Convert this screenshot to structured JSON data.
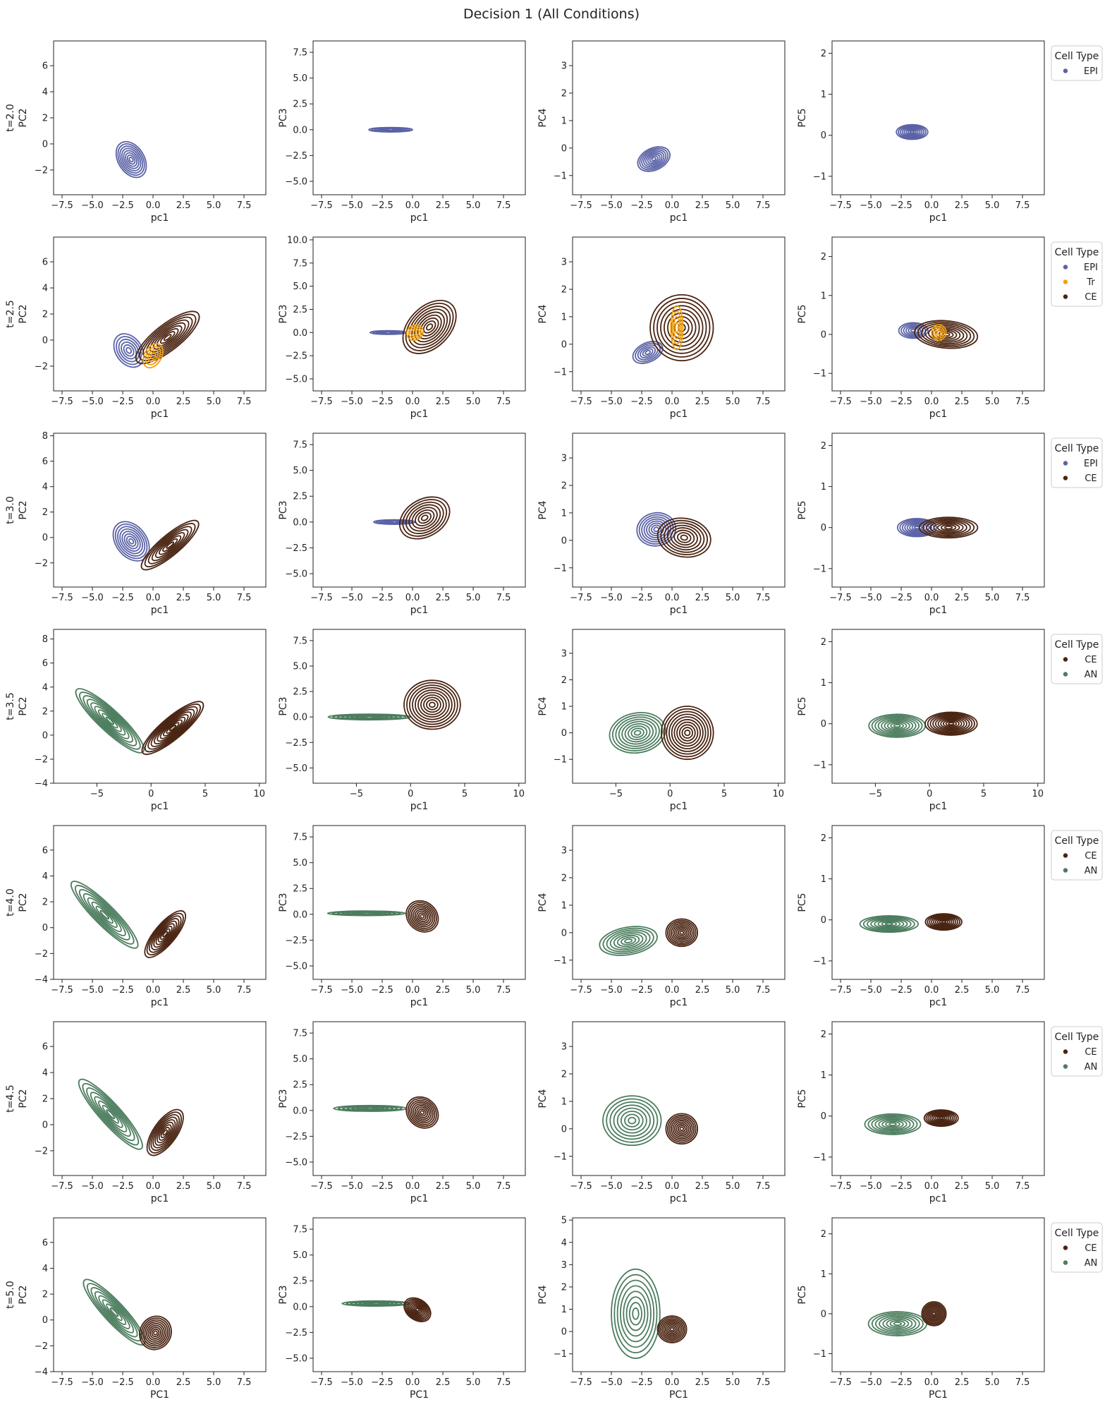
{
  "figure": {
    "title": "Decision 1 (All Conditions)"
  },
  "legend": {
    "title": "Cell Type"
  },
  "colors": {
    "EPI": "#5b63a6",
    "Tr": "#f2a10e",
    "CE": "#4a2412",
    "AN": "#4c7d5e"
  },
  "chart_data": [
    {
      "type": "contour",
      "row_label": "t=2.0",
      "ylabels": [
        "PC2",
        "PC3",
        "PC4",
        "PC5"
      ],
      "xlabel": "pc1",
      "legend": [
        "EPI"
      ],
      "xlim": [
        -8.2,
        9.3
      ],
      "xticks": [
        -7.5,
        -5.0,
        -2.5,
        0.0,
        2.5,
        5.0,
        7.5
      ],
      "ylims": [
        [
          -3.9,
          7.9
        ],
        [
          -6.3,
          8.6
        ],
        [
          -1.7,
          3.9
        ],
        [
          -1.45,
          2.3
        ]
      ],
      "yticks": [
        [
          -2,
          0,
          2,
          4,
          6
        ],
        [
          -5.0,
          -2.5,
          0.0,
          2.5,
          5.0,
          7.5
        ],
        [
          -1,
          0,
          1,
          2,
          3
        ],
        [
          -1,
          0,
          1,
          2
        ]
      ],
      "clusters": [
        {
          "type": "EPI",
          "center": [
            [
              -1.8,
              -1.2
            ],
            [
              -1.8,
              0.0
            ],
            [
              -1.5,
              -0.4
            ],
            [
              -1.6,
              0.08
            ]
          ],
          "spread": [
            [
              1.6,
              1.0
            ],
            [
              1.8,
              0.22
            ],
            [
              1.4,
              0.4
            ],
            [
              1.3,
              0.18
            ]
          ],
          "angle": [
            -58,
            0,
            25,
            0
          ],
          "levels": 8
        }
      ]
    },
    {
      "type": "contour",
      "row_label": "t=2.5",
      "ylabels": [
        "PC2",
        "PC3",
        "PC4",
        "PC5"
      ],
      "xlabel": "pc1",
      "legend": [
        "EPI",
        "Tr",
        "CE"
      ],
      "xlim": [
        -8.2,
        9.3
      ],
      "xticks": [
        -7.5,
        -5.0,
        -2.5,
        0.0,
        2.5,
        5.0,
        7.5
      ],
      "ylims": [
        [
          -3.9,
          7.9
        ],
        [
          -6.3,
          10.3
        ],
        [
          -1.7,
          3.9
        ],
        [
          -1.45,
          2.5
        ]
      ],
      "yticks": [
        [
          -2,
          0,
          2,
          4,
          6
        ],
        [
          -5.0,
          -2.5,
          0.0,
          2.5,
          5.0,
          7.5,
          10.0
        ],
        [
          -1,
          0,
          1,
          2,
          3
        ],
        [
          -1,
          0,
          1,
          2
        ]
      ],
      "clusters": [
        {
          "type": "EPI",
          "center": [
            [
              -2.0,
              -0.8
            ],
            [
              -2.0,
              0.0
            ],
            [
              -2.0,
              -0.3
            ],
            [
              -1.5,
              0.1
            ]
          ],
          "spread": [
            [
              1.5,
              1.0
            ],
            [
              1.5,
              0.2
            ],
            [
              1.3,
              0.35
            ],
            [
              1.2,
              0.2
            ]
          ],
          "angle": [
            -55,
            0,
            25,
            0
          ],
          "levels": 6
        },
        {
          "type": "CE",
          "center": [
            [
              1.2,
              0.2
            ],
            [
              1.4,
              0.6
            ],
            [
              0.8,
              0.6
            ],
            [
              1.2,
              0.0
            ]
          ],
          "spread": [
            [
              3.2,
              1.0
            ],
            [
              2.6,
              2.2
            ],
            [
              2.6,
              1.2
            ],
            [
              2.6,
              0.35
            ]
          ],
          "angle": [
            38,
            45,
            0,
            -5
          ],
          "levels": 9
        },
        {
          "type": "Tr",
          "center": [
            [
              0.0,
              -1.2
            ],
            [
              0.2,
              0.0
            ],
            [
              0.4,
              0.6
            ],
            [
              0.6,
              0.05
            ]
          ],
          "spread": [
            [
              0.7,
              1.0
            ],
            [
              0.7,
              0.8
            ],
            [
              0.5,
              0.8
            ],
            [
              0.6,
              0.2
            ]
          ],
          "angle": [
            -30,
            30,
            0,
            0
          ],
          "levels": 4
        }
      ]
    },
    {
      "type": "contour",
      "row_label": "t=3.0",
      "ylabels": [
        "PC2",
        "PC3",
        "PC4",
        "PC5"
      ],
      "xlabel": "pc1",
      "legend": [
        "EPI",
        "CE"
      ],
      "xlim": [
        -8.2,
        9.3
      ],
      "xticks": [
        -7.5,
        -5.0,
        -2.5,
        0.0,
        2.5,
        5.0,
        7.5
      ],
      "ylims": [
        [
          -3.9,
          8.2
        ],
        [
          -6.3,
          8.6
        ],
        [
          -1.7,
          3.9
        ],
        [
          -1.45,
          2.3
        ]
      ],
      "yticks": [
        [
          -2,
          0,
          2,
          4,
          6,
          8
        ],
        [
          -5.0,
          -2.5,
          0.0,
          2.5,
          5.0,
          7.5
        ],
        [
          -1,
          0,
          1,
          2,
          3
        ],
        [
          -1,
          0,
          1,
          2
        ]
      ],
      "clusters": [
        {
          "type": "EPI",
          "center": [
            [
              -1.8,
              -0.3
            ],
            [
              -1.5,
              0.0
            ],
            [
              -1.3,
              0.4
            ],
            [
              -1.2,
              0.0
            ]
          ],
          "spread": [
            [
              1.8,
              1.2
            ],
            [
              1.7,
              0.22
            ],
            [
              1.6,
              0.6
            ],
            [
              1.6,
              0.22
            ]
          ],
          "angle": [
            -52,
            0,
            10,
            0
          ],
          "levels": 8
        },
        {
          "type": "CE",
          "center": [
            [
              1.4,
              -0.6
            ],
            [
              1.0,
              0.4
            ],
            [
              1.0,
              0.1
            ],
            [
              1.4,
              0.0
            ]
          ],
          "spread": [
            [
              3.0,
              0.8
            ],
            [
              2.2,
              1.8
            ],
            [
              2.2,
              0.7
            ],
            [
              2.4,
              0.25
            ]
          ],
          "angle": [
            40,
            30,
            -10,
            0
          ],
          "levels": 8
        }
      ]
    },
    {
      "type": "contour",
      "row_label": "t=3.5",
      "ylabels": [
        "PC2",
        "PC3",
        "PC4",
        "PC5"
      ],
      "xlabel": "pc1",
      "legend": [
        "CE",
        "AN"
      ],
      "xlim": [
        -9.0,
        10.6
      ],
      "xticks": [
        -5,
        0,
        5,
        10
      ],
      "ylims": [
        [
          -4.0,
          8.8
        ],
        [
          -6.5,
          8.6
        ],
        [
          -1.9,
          3.9
        ],
        [
          -1.45,
          2.3
        ]
      ],
      "yticks": [
        [
          -4,
          -2,
          0,
          2,
          4,
          6,
          8
        ],
        [
          -5.0,
          -2.5,
          0.0,
          2.5,
          5.0,
          7.5
        ],
        [
          -1,
          0,
          1,
          2,
          3
        ],
        [
          -1,
          0,
          1,
          2
        ]
      ],
      "clusters": [
        {
          "type": "AN",
          "center": [
            [
              -3.8,
              1.2
            ],
            [
              -3.8,
              0.0
            ],
            [
              -3.0,
              0.0
            ],
            [
              -3.0,
              -0.05
            ]
          ],
          "spread": [
            [
              4.2,
              0.9
            ],
            [
              3.8,
              0.28
            ],
            [
              2.6,
              0.75
            ],
            [
              2.6,
              0.28
            ]
          ],
          "angle": [
            -43,
            0,
            10,
            0
          ],
          "levels": 9
        },
        {
          "type": "CE",
          "center": [
            [
              2.0,
              0.6
            ],
            [
              2.0,
              1.2
            ],
            [
              1.6,
              0.0
            ],
            [
              2.0,
              0.0
            ]
          ],
          "spread": [
            [
              3.6,
              0.9
            ],
            [
              2.6,
              2.4
            ],
            [
              2.4,
              1.0
            ],
            [
              2.4,
              0.28
            ]
          ],
          "angle": [
            40,
            0,
            0,
            0
          ],
          "levels": 10
        }
      ]
    },
    {
      "type": "contour",
      "row_label": "t=4.0",
      "ylabels": [
        "PC2",
        "PC3",
        "PC4",
        "PC5"
      ],
      "xlabel": "pc1",
      "legend": [
        "CE",
        "AN"
      ],
      "xlim": [
        -8.2,
        9.3
      ],
      "xticks": [
        -7.5,
        -5.0,
        -2.5,
        0.0,
        2.5,
        5.0,
        7.5
      ],
      "ylims": [
        [
          -4.0,
          7.9
        ],
        [
          -6.3,
          8.6
        ],
        [
          -1.7,
          3.9
        ],
        [
          -1.45,
          2.3
        ]
      ],
      "yticks": [
        [
          -4,
          -2,
          0,
          2,
          4,
          6
        ],
        [
          -5.0,
          -2.5,
          0.0,
          2.5,
          5.0,
          7.5
        ],
        [
          -1,
          0,
          1,
          2,
          3
        ],
        [
          -1,
          0,
          1,
          2
        ]
      ],
      "clusters": [
        {
          "type": "AN",
          "center": [
            [
              -4.0,
              1.0
            ],
            [
              -3.8,
              0.1
            ],
            [
              -3.6,
              -0.3
            ],
            [
              -3.5,
              -0.1
            ]
          ],
          "spread": [
            [
              3.8,
              0.8
            ],
            [
              3.2,
              0.22
            ],
            [
              2.4,
              0.5
            ],
            [
              2.4,
              0.2
            ]
          ],
          "angle": [
            -45,
            0,
            10,
            0
          ],
          "levels": 8
        },
        {
          "type": "CE",
          "center": [
            [
              1.0,
              -0.5
            ],
            [
              0.8,
              -0.2
            ],
            [
              0.8,
              0.0
            ],
            [
              1.0,
              -0.05
            ]
          ],
          "spread": [
            [
              2.4,
              0.8
            ],
            [
              1.4,
              1.4
            ],
            [
              1.3,
              0.5
            ],
            [
              1.5,
              0.2
            ]
          ],
          "angle": [
            50,
            -40,
            0,
            0
          ],
          "levels": 9
        }
      ]
    },
    {
      "type": "contour",
      "row_label": "t=4.5",
      "ylabels": [
        "PC2",
        "PC3",
        "PC4",
        "PC5"
      ],
      "xlabel": "pc1",
      "legend": [
        "CE",
        "AN"
      ],
      "xlim": [
        -8.2,
        9.3
      ],
      "xticks": [
        -7.5,
        -5.0,
        -2.5,
        0.0,
        2.5,
        5.0,
        7.5
      ],
      "ylims": [
        [
          -3.9,
          7.9
        ],
        [
          -6.3,
          8.6
        ],
        [
          -1.7,
          3.9
        ],
        [
          -1.45,
          2.3
        ]
      ],
      "yticks": [
        [
          -2,
          0,
          2,
          4,
          6
        ],
        [
          -5.0,
          -2.5,
          0.0,
          2.5,
          5.0,
          7.5
        ],
        [
          -1,
          0,
          1,
          2,
          3
        ],
        [
          -1,
          0,
          1,
          2
        ]
      ],
      "clusters": [
        {
          "type": "AN",
          "center": [
            [
              -3.5,
              0.8
            ],
            [
              -3.5,
              0.2
            ],
            [
              -3.3,
              0.3
            ],
            [
              -3.2,
              -0.2
            ]
          ],
          "spread": [
            [
              3.8,
              0.8
            ],
            [
              3.0,
              0.28
            ],
            [
              2.4,
              0.9
            ],
            [
              2.3,
              0.25
            ]
          ],
          "angle": [
            -48,
            0,
            0,
            0
          ],
          "levels": 8
        },
        {
          "type": "CE",
          "center": [
            [
              1.0,
              -0.6
            ],
            [
              0.8,
              -0.2
            ],
            [
              0.8,
              0.0
            ],
            [
              0.8,
              -0.05
            ]
          ],
          "spread": [
            [
              2.2,
              0.9
            ],
            [
              1.4,
              1.4
            ],
            [
              1.3,
              0.55
            ],
            [
              1.4,
              0.2
            ]
          ],
          "angle": [
            55,
            -40,
            0,
            0
          ],
          "levels": 9
        }
      ]
    },
    {
      "type": "contour",
      "row_label": "t=5.0",
      "ylabels": [
        "PC2",
        "PC3",
        "PC4",
        "PC5"
      ],
      "xlabel": "PC1",
      "legend": [
        "CE",
        "AN"
      ],
      "xlim": [
        -8.2,
        9.3
      ],
      "xticks": [
        -7.5,
        -5.0,
        -2.5,
        0.0,
        2.5,
        5.0,
        7.5
      ],
      "ylims": [
        [
          -4.0,
          7.9
        ],
        [
          -6.3,
          8.6
        ],
        [
          -1.8,
          5.1
        ],
        [
          -1.45,
          2.4
        ]
      ],
      "yticks": [
        [
          -4,
          -2,
          0,
          2,
          4,
          6
        ],
        [
          -5.0,
          -2.5,
          0.0,
          2.5,
          5.0,
          7.5
        ],
        [
          -1,
          0,
          1,
          2,
          3,
          4,
          5
        ],
        [
          -1,
          0,
          1,
          2
        ]
      ],
      "clusters": [
        {
          "type": "AN",
          "center": [
            [
              -3.2,
              0.6
            ],
            [
              -3.0,
              0.3
            ],
            [
              -3.0,
              0.8
            ],
            [
              -2.8,
              -0.25
            ]
          ],
          "spread": [
            [
              3.6,
              0.8
            ],
            [
              2.8,
              0.25
            ],
            [
              2.0,
              2.0
            ],
            [
              2.4,
              0.3
            ]
          ],
          "angle": [
            -47,
            0,
            0,
            0
          ],
          "levels": 8
        },
        {
          "type": "CE",
          "center": [
            [
              0.2,
              -1.0
            ],
            [
              0.4,
              -0.3
            ],
            [
              0.0,
              0.1
            ],
            [
              0.2,
              0.0
            ]
          ],
          "spread": [
            [
              1.4,
              1.2
            ],
            [
              1.2,
              1.0
            ],
            [
              1.2,
              0.6
            ],
            [
              1.0,
              0.3
            ]
          ],
          "angle": [
            60,
            -35,
            0,
            0
          ],
          "levels": 9
        }
      ]
    }
  ]
}
